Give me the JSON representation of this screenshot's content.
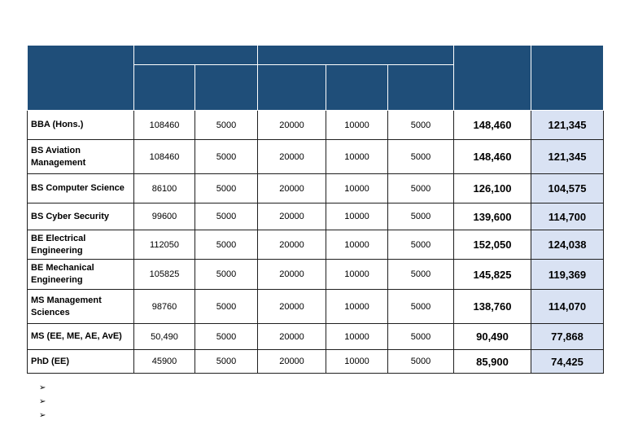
{
  "rows": [
    {
      "program": "BBA (Hons.)",
      "c1": "108460",
      "c2": "5000",
      "c3": "20000",
      "c4": "10000",
      "c5": "5000",
      "total": "148,460",
      "net": "121,345"
    },
    {
      "program": "BS Aviation Management",
      "c1": "108460",
      "c2": "5000",
      "c3": "20000",
      "c4": "10000",
      "c5": "5000",
      "total": "148,460",
      "net": "121,345"
    },
    {
      "program": "BS Computer Science",
      "c1": "86100",
      "c2": "5000",
      "c3": "20000",
      "c4": "10000",
      "c5": "5000",
      "total": "126,100",
      "net": "104,575"
    },
    {
      "program": "BS Cyber Security",
      "c1": "99600",
      "c2": "5000",
      "c3": "20000",
      "c4": "10000",
      "c5": "5000",
      "total": "139,600",
      "net": "114,700"
    },
    {
      "program": "BE Electrical Engineering",
      "c1": "112050",
      "c2": "5000",
      "c3": "20000",
      "c4": "10000",
      "c5": "5000",
      "total": "152,050",
      "net": "124,038"
    },
    {
      "program": "BE Mechanical Engineering",
      "c1": "105825",
      "c2": "5000",
      "c3": "20000",
      "c4": "10000",
      "c5": "5000",
      "total": "145,825",
      "net": "119,369"
    },
    {
      "program": "MS Management Sciences",
      "c1": "98760",
      "c2": "5000",
      "c3": "20000",
      "c4": "10000",
      "c5": "5000",
      "total": "138,760",
      "net": "114,070"
    },
    {
      "program": "MS (EE, ME, AE, AvE)",
      "c1": "50,490",
      "c2": "5000",
      "c3": "20000",
      "c4": "10000",
      "c5": "5000",
      "total": "90,490",
      "net": "77,868"
    },
    {
      "program": "PhD (EE)",
      "c1": "45900",
      "c2": "5000",
      "c3": "20000",
      "c4": "10000",
      "c5": "5000",
      "total": "85,900",
      "net": "74,425"
    }
  ],
  "bullets": [
    "➢",
    "➢",
    "➢"
  ]
}
